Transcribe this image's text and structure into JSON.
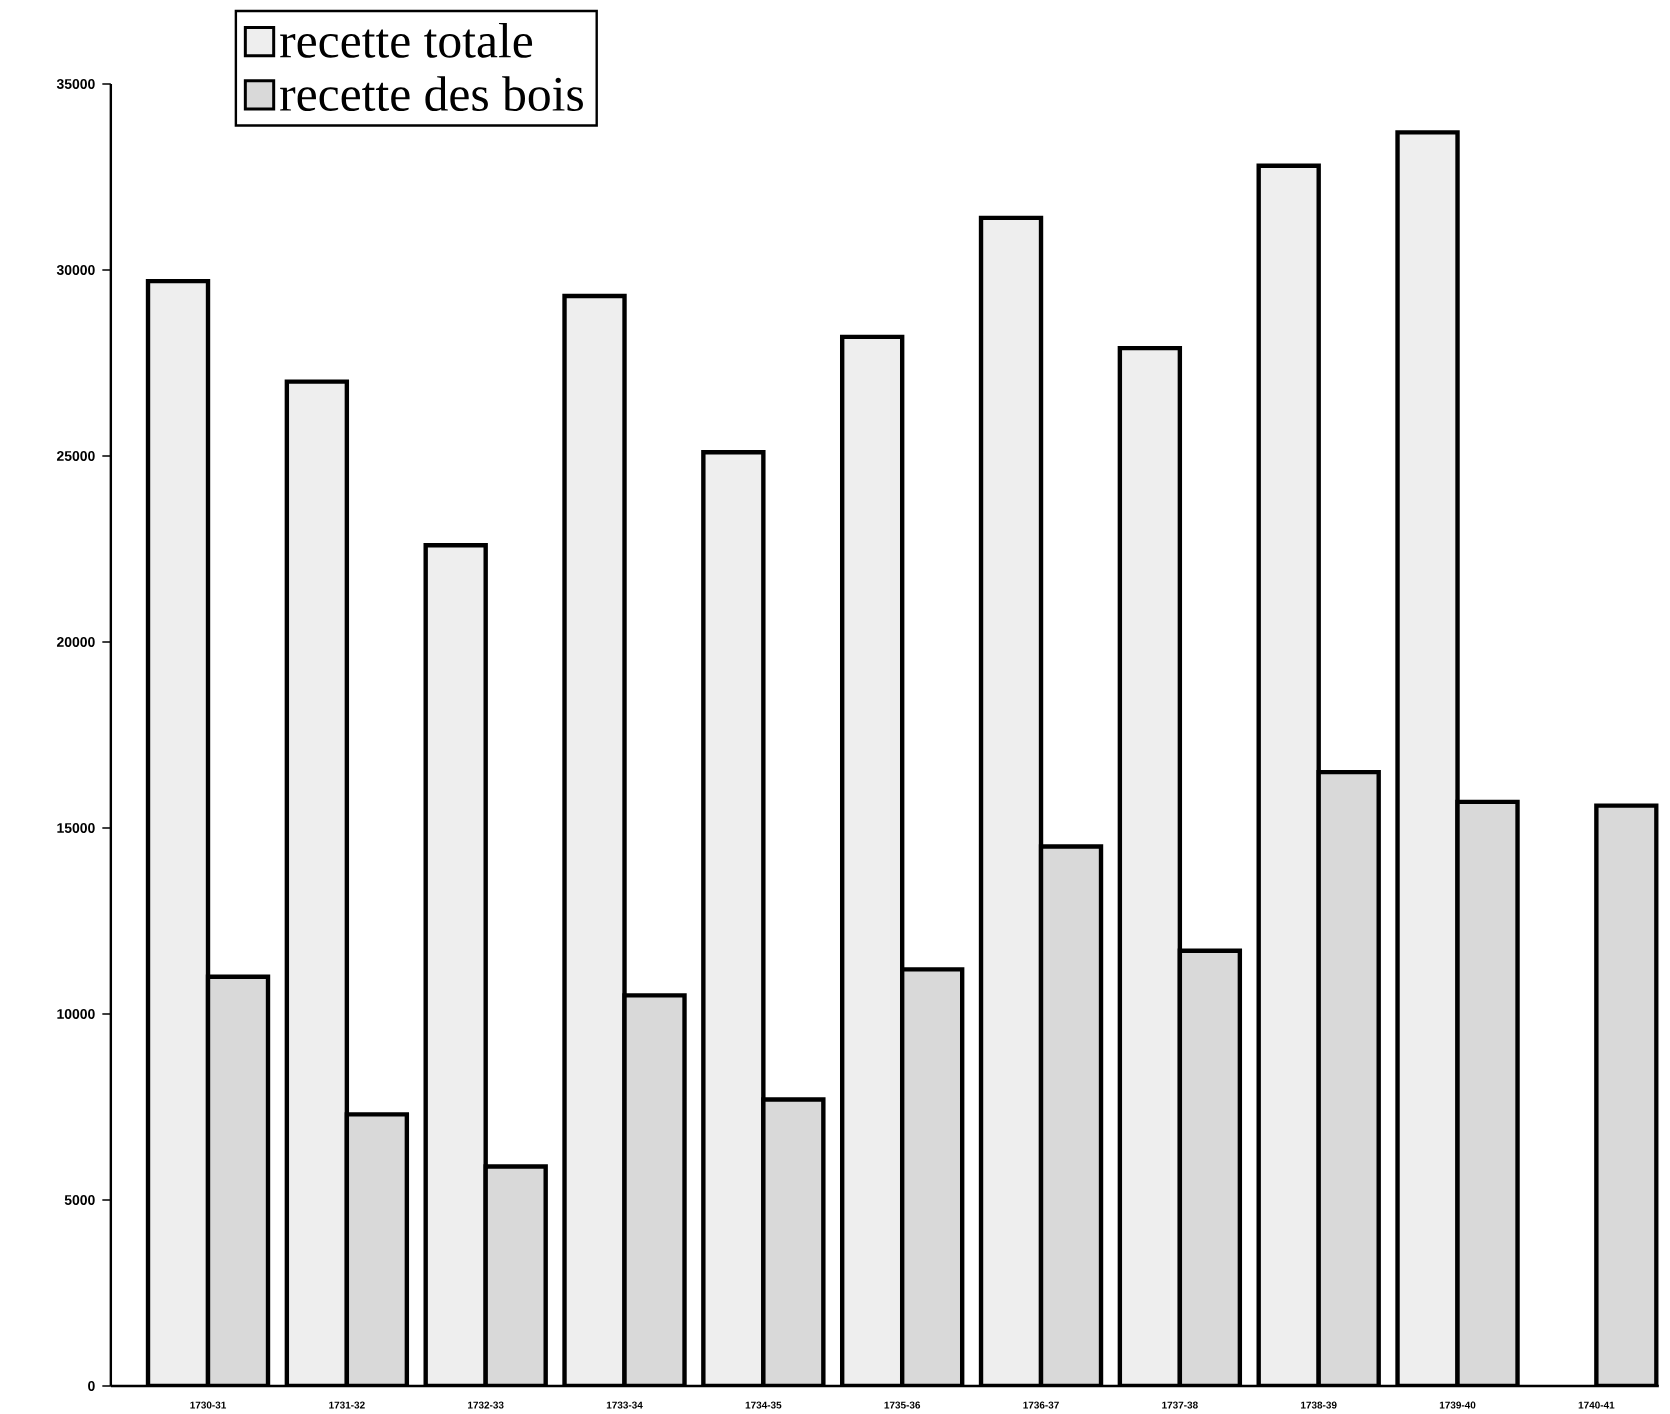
{
  "chart_data": {
    "type": "bar",
    "categories": [
      "1730-31",
      "1731-32",
      "1732-33",
      "1733-34",
      "1734-35",
      "1735-36",
      "1736-37",
      "1737-38",
      "1738-39",
      "1739-40",
      "1740-41"
    ],
    "series": [
      {
        "name": "recette totale",
        "color": "#eeeeee",
        "values": [
          29700,
          27000,
          22600,
          29300,
          25100,
          28200,
          31400,
          27900,
          32800,
          33700,
          null
        ]
      },
      {
        "name": "recette des bois",
        "color": "#d9d9d9",
        "values": [
          11000,
          7300,
          5900,
          10500,
          7700,
          11200,
          14500,
          11700,
          16500,
          15700,
          15600
        ]
      }
    ],
    "ylim": [
      0,
      35000
    ],
    "yticks": [
      0,
      5000,
      10000,
      15000,
      20000,
      25000,
      30000,
      35000
    ],
    "grid": false,
    "legend": "top left"
  }
}
